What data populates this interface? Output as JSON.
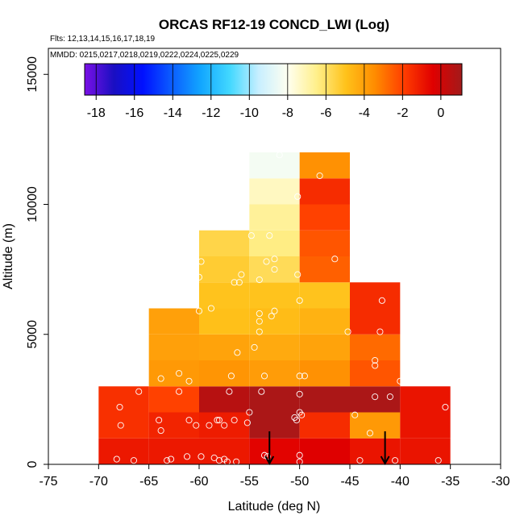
{
  "chart_data": {
    "type": "heatmap",
    "title": "ORCAS RF12-19 CONCD_LWI (Log)",
    "subtitle_flights": "Flts: 12,13,14,15,16,17,18,19",
    "subtitle_dates": "MMDD: 0215,0217,0218,0219,0222,0224,0225,0229",
    "xlabel": "Latitude (deg N)",
    "ylabel": "Altitude (m)",
    "xlim": [
      -75,
      -30
    ],
    "ylim": [
      0,
      16000
    ],
    "x_ticks": [
      -75,
      -70,
      -65,
      -60,
      -55,
      -50,
      -45,
      -40,
      -35,
      -30
    ],
    "y_ticks": [
      0,
      5000,
      10000,
      15000
    ],
    "colorbar": {
      "range": [
        -18.6,
        1.1
      ],
      "ticks": [
        -18,
        -16,
        -14,
        -12,
        -10,
        -8,
        -6,
        -4,
        -2,
        0
      ],
      "colors": [
        "#7a10e6",
        "#1a0fc2",
        "#0010ff",
        "#0b5dff",
        "#12a6ff",
        "#42d8ff",
        "#c8efff",
        "#fffff0",
        "#ffef8a",
        "#ffc21a",
        "#ff8c00",
        "#ff3d00",
        "#e00000",
        "#a31a1a"
      ]
    },
    "cells": [
      {
        "lat": [
          -70,
          -65
        ],
        "alt": [
          0,
          1000
        ],
        "value": -1.0
      },
      {
        "lat": [
          -70,
          -65
        ],
        "alt": [
          1000,
          2000
        ],
        "value": -1.6
      },
      {
        "lat": [
          -70,
          -65
        ],
        "alt": [
          2000,
          3000
        ],
        "value": -1.6
      },
      {
        "lat": [
          -65,
          -60
        ],
        "alt": [
          0,
          1000
        ],
        "value": -1.0
      },
      {
        "lat": [
          -65,
          -60
        ],
        "alt": [
          1000,
          2000
        ],
        "value": -1.3
      },
      {
        "lat": [
          -65,
          -60
        ],
        "alt": [
          2000,
          3000
        ],
        "value": -2.0
      },
      {
        "lat": [
          -65,
          -60
        ],
        "alt": [
          3000,
          4000
        ],
        "value": -3.8
      },
      {
        "lat": [
          -65,
          -60
        ],
        "alt": [
          4000,
          5000
        ],
        "value": -4.0
      },
      {
        "lat": [
          -65,
          -60
        ],
        "alt": [
          5000,
          6000
        ],
        "value": -4.0
      },
      {
        "lat": [
          -60,
          -55
        ],
        "alt": [
          0,
          1000
        ],
        "value": -1.0
      },
      {
        "lat": [
          -60,
          -55
        ],
        "alt": [
          1000,
          2000
        ],
        "value": -1.1
      },
      {
        "lat": [
          -60,
          -55
        ],
        "alt": [
          2000,
          3000
        ],
        "value": 0.6
      },
      {
        "lat": [
          -60,
          -55
        ],
        "alt": [
          3000,
          4000
        ],
        "value": -3.7
      },
      {
        "lat": [
          -60,
          -55
        ],
        "alt": [
          4000,
          5000
        ],
        "value": -4.1
      },
      {
        "lat": [
          -60,
          -55
        ],
        "alt": [
          5000,
          6000
        ],
        "value": -4.9
      },
      {
        "lat": [
          -60,
          -55
        ],
        "alt": [
          6000,
          7000
        ],
        "value": -5.0
      },
      {
        "lat": [
          -60,
          -55
        ],
        "alt": [
          7000,
          8000
        ],
        "value": -5.3
      },
      {
        "lat": [
          -60,
          -55
        ],
        "alt": [
          8000,
          9000
        ],
        "value": -5.6
      },
      {
        "lat": [
          -55,
          -50
        ],
        "alt": [
          0,
          1000
        ],
        "value": -0.5
      },
      {
        "lat": [
          -55,
          -50
        ],
        "alt": [
          1000,
          2000
        ],
        "value": 0.9
      },
      {
        "lat": [
          -55,
          -50
        ],
        "alt": [
          2000,
          3000
        ],
        "value": 0.9
      },
      {
        "lat": [
          -55,
          -50
        ],
        "alt": [
          3000,
          4000
        ],
        "value": -3.9
      },
      {
        "lat": [
          -55,
          -50
        ],
        "alt": [
          4000,
          5000
        ],
        "value": -4.3
      },
      {
        "lat": [
          -55,
          -50
        ],
        "alt": [
          5000,
          6000
        ],
        "value": -4.8
      },
      {
        "lat": [
          -55,
          -50
        ],
        "alt": [
          6000,
          7000
        ],
        "value": -5.0
      },
      {
        "lat": [
          -55,
          -50
        ],
        "alt": [
          7000,
          8000
        ],
        "value": -5.8
      },
      {
        "lat": [
          -55,
          -50
        ],
        "alt": [
          8000,
          9000
        ],
        "value": -6.4
      },
      {
        "lat": [
          -55,
          -50
        ],
        "alt": [
          9000,
          10000
        ],
        "value": -6.7
      },
      {
        "lat": [
          -55,
          -50
        ],
        "alt": [
          10000,
          11000
        ],
        "value": -7.3
      },
      {
        "lat": [
          -55,
          -50
        ],
        "alt": [
          11000,
          12000
        ],
        "value": -8.3
      },
      {
        "lat": [
          -50,
          -45
        ],
        "alt": [
          0,
          1000
        ],
        "value": -0.4
      },
      {
        "lat": [
          -50,
          -45
        ],
        "alt": [
          1000,
          2000
        ],
        "value": -1.5
      },
      {
        "lat": [
          -50,
          -45
        ],
        "alt": [
          2000,
          3000
        ],
        "value": 0.9
      },
      {
        "lat": [
          -50,
          -45
        ],
        "alt": [
          3000,
          4000
        ],
        "value": -3.6
      },
      {
        "lat": [
          -50,
          -45
        ],
        "alt": [
          4000,
          5000
        ],
        "value": -4.1
      },
      {
        "lat": [
          -50,
          -45
        ],
        "alt": [
          5000,
          6000
        ],
        "value": -4.5
      },
      {
        "lat": [
          -50,
          -45
        ],
        "alt": [
          6000,
          7000
        ],
        "value": -5.0
      },
      {
        "lat": [
          -50,
          -45
        ],
        "alt": [
          7000,
          8000
        ],
        "value": -2.6
      },
      {
        "lat": [
          -50,
          -45
        ],
        "alt": [
          8000,
          9000
        ],
        "value": -2.4
      },
      {
        "lat": [
          -50,
          -45
        ],
        "alt": [
          9000,
          10000
        ],
        "value": -2.0
      },
      {
        "lat": [
          -50,
          -45
        ],
        "alt": [
          10000,
          11000
        ],
        "value": -1.5
      },
      {
        "lat": [
          -50,
          -45
        ],
        "alt": [
          11000,
          12000
        ],
        "value": -3.6
      },
      {
        "lat": [
          -45,
          -40
        ],
        "alt": [
          0,
          1000
        ],
        "value": -0.9
      },
      {
        "lat": [
          -45,
          -40
        ],
        "alt": [
          1000,
          2000
        ],
        "value": -3.8
      },
      {
        "lat": [
          -45,
          -40
        ],
        "alt": [
          2000,
          3000
        ],
        "value": 0.9
      },
      {
        "lat": [
          -45,
          -40
        ],
        "alt": [
          3000,
          4000
        ],
        "value": -2.4
      },
      {
        "lat": [
          -45,
          -40
        ],
        "alt": [
          4000,
          5000
        ],
        "value": -2.8
      },
      {
        "lat": [
          -45,
          -40
        ],
        "alt": [
          5000,
          6000
        ],
        "value": -1.5
      },
      {
        "lat": [
          -45,
          -40
        ],
        "alt": [
          6000,
          7000
        ],
        "value": -1.5
      },
      {
        "lat": [
          -40,
          -35
        ],
        "alt": [
          0,
          1000
        ],
        "value": -0.9
      },
      {
        "lat": [
          -40,
          -35
        ],
        "alt": [
          1000,
          2000
        ],
        "value": -0.9
      },
      {
        "lat": [
          -40,
          -35
        ],
        "alt": [
          2000,
          3000
        ],
        "value": -0.9
      }
    ],
    "points": [
      {
        "lat": -68.2,
        "alt": 200
      },
      {
        "lat": -66.5,
        "alt": 150
      },
      {
        "lat": -67.8,
        "alt": 1500
      },
      {
        "lat": -67.9,
        "alt": 2200
      },
      {
        "lat": -66.0,
        "alt": 2800
      },
      {
        "lat": -64.0,
        "alt": 1700
      },
      {
        "lat": -63.8,
        "alt": 1300
      },
      {
        "lat": -62.0,
        "alt": 2800
      },
      {
        "lat": -63.2,
        "alt": 150
      },
      {
        "lat": -62.8,
        "alt": 200
      },
      {
        "lat": -61.2,
        "alt": 300
      },
      {
        "lat": -60.3,
        "alt": 1500
      },
      {
        "lat": -61.0,
        "alt": 1700
      },
      {
        "lat": -63.8,
        "alt": 3300
      },
      {
        "lat": -62.0,
        "alt": 3500
      },
      {
        "lat": -61.0,
        "alt": 3200
      },
      {
        "lat": -60.0,
        "alt": 5900
      },
      {
        "lat": -58.8,
        "alt": 6000
      },
      {
        "lat": -59.8,
        "alt": 7800
      },
      {
        "lat": -60.0,
        "alt": 7200
      },
      {
        "lat": -56.5,
        "alt": 7000
      },
      {
        "lat": -56.0,
        "alt": 7000
      },
      {
        "lat": -55.8,
        "alt": 7300
      },
      {
        "lat": -54.0,
        "alt": 7100
      },
      {
        "lat": -59.0,
        "alt": 1500
      },
      {
        "lat": -58.0,
        "alt": 1700
      },
      {
        "lat": -57.5,
        "alt": 1500
      },
      {
        "lat": -58.2,
        "alt": 1700
      },
      {
        "lat": -56.5,
        "alt": 1700
      },
      {
        "lat": -57.0,
        "alt": 2800
      },
      {
        "lat": -56.8,
        "alt": 3400
      },
      {
        "lat": -56.2,
        "alt": 4300
      },
      {
        "lat": -58.5,
        "alt": 250
      },
      {
        "lat": -59.8,
        "alt": 300
      },
      {
        "lat": -57.5,
        "alt": 200
      },
      {
        "lat": -58.0,
        "alt": 150
      },
      {
        "lat": -57.2,
        "alt": 100
      },
      {
        "lat": -56.3,
        "alt": 100
      },
      {
        "lat": -55.0,
        "alt": 2000
      },
      {
        "lat": -55.2,
        "alt": 1600
      },
      {
        "lat": -53.8,
        "alt": 2800
      },
      {
        "lat": -53.5,
        "alt": 3400
      },
      {
        "lat": -54.5,
        "alt": 4500
      },
      {
        "lat": -54.0,
        "alt": 5100
      },
      {
        "lat": -54.0,
        "alt": 5500
      },
      {
        "lat": -54.0,
        "alt": 5800
      },
      {
        "lat": -52.8,
        "alt": 5700
      },
      {
        "lat": -52.5,
        "alt": 5900
      },
      {
        "lat": -52.5,
        "alt": 7500
      },
      {
        "lat": -52.5,
        "alt": 7900
      },
      {
        "lat": -53.3,
        "alt": 7800
      },
      {
        "lat": -54.8,
        "alt": 8800
      },
      {
        "lat": -53.0,
        "alt": 8800
      },
      {
        "lat": -52.0,
        "alt": 11900
      },
      {
        "lat": -50.2,
        "alt": 10300
      },
      {
        "lat": -48.0,
        "alt": 11100
      },
      {
        "lat": -50.2,
        "alt": 7300
      },
      {
        "lat": -50.0,
        "alt": 6300
      },
      {
        "lat": -46.5,
        "alt": 7900
      },
      {
        "lat": -45.2,
        "alt": 5100
      },
      {
        "lat": -50.0,
        "alt": 3400
      },
      {
        "lat": -49.5,
        "alt": 3400
      },
      {
        "lat": -50.0,
        "alt": 2700
      },
      {
        "lat": -50.0,
        "alt": 2000
      },
      {
        "lat": -50.5,
        "alt": 1800
      },
      {
        "lat": -49.8,
        "alt": 1900
      },
      {
        "lat": -50.3,
        "alt": 1700
      },
      {
        "lat": -53.5,
        "alt": 350
      },
      {
        "lat": -53.2,
        "alt": 300
      },
      {
        "lat": -50.0,
        "alt": 350
      },
      {
        "lat": -50.0,
        "alt": 100
      },
      {
        "lat": -44.5,
        "alt": 1900
      },
      {
        "lat": -43.0,
        "alt": 1200
      },
      {
        "lat": -42.5,
        "alt": 2600
      },
      {
        "lat": -41.0,
        "alt": 2600
      },
      {
        "lat": -42.5,
        "alt": 3800
      },
      {
        "lat": -42.0,
        "alt": 5100
      },
      {
        "lat": -41.8,
        "alt": 6300
      },
      {
        "lat": -40.0,
        "alt": 3200
      },
      {
        "lat": -35.5,
        "alt": 2200
      },
      {
        "lat": -42.5,
        "alt": 4000
      },
      {
        "lat": -36.2,
        "alt": 150
      },
      {
        "lat": -40.5,
        "alt": 150
      },
      {
        "lat": -44.0,
        "alt": 150
      }
    ],
    "arrows": [
      {
        "lat": -53.0,
        "alt_from": 650,
        "alt_to": 0
      },
      {
        "lat": -41.5,
        "alt_from": 650,
        "alt_to": 0
      }
    ]
  }
}
